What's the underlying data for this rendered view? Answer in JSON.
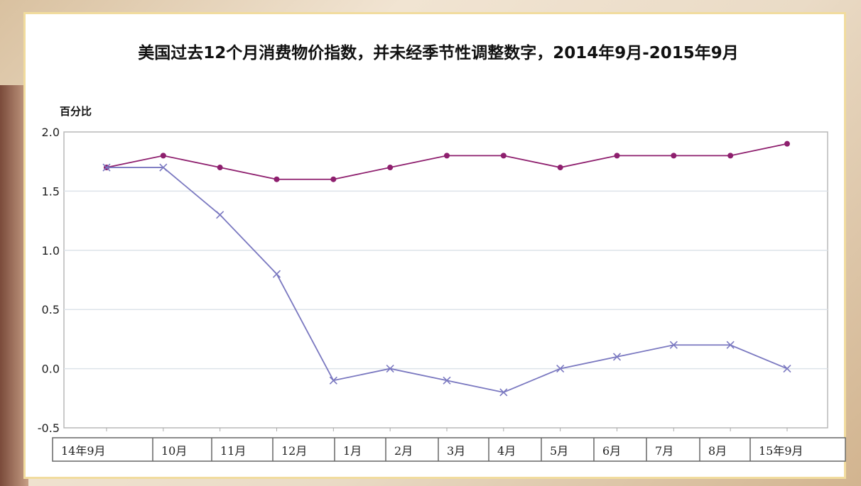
{
  "chart_data": {
    "type": "line",
    "title": "美国过去12个月消费物价指数，并未经季节性调整数字，2014年9月-2015年9月",
    "ylabel": "百分比",
    "xlabel": "",
    "categories": [
      "14年9月",
      "10月",
      "11月",
      "12月",
      "1月",
      "2月",
      "3月",
      "4月",
      "5月",
      "6月",
      "7月",
      "8月",
      "15年9月"
    ],
    "ylim": [
      -0.5,
      2.0
    ],
    "yticks": [
      "2.0",
      "1.5",
      "1.0",
      "0.5",
      "0.0",
      "-0.5"
    ],
    "grid": true,
    "series": [
      {
        "marker": "dot",
        "color": "#8e1f6e",
        "values": [
          1.7,
          1.8,
          1.7,
          1.6,
          1.6,
          1.7,
          1.8,
          1.8,
          1.7,
          1.8,
          1.8,
          1.8,
          1.9
        ]
      },
      {
        "marker": "x",
        "color": "#7a78c0",
        "values": [
          1.7,
          1.7,
          1.3,
          0.8,
          -0.1,
          0.0,
          -0.1,
          -0.2,
          0.0,
          0.1,
          0.2,
          0.2,
          0.0
        ]
      }
    ]
  }
}
